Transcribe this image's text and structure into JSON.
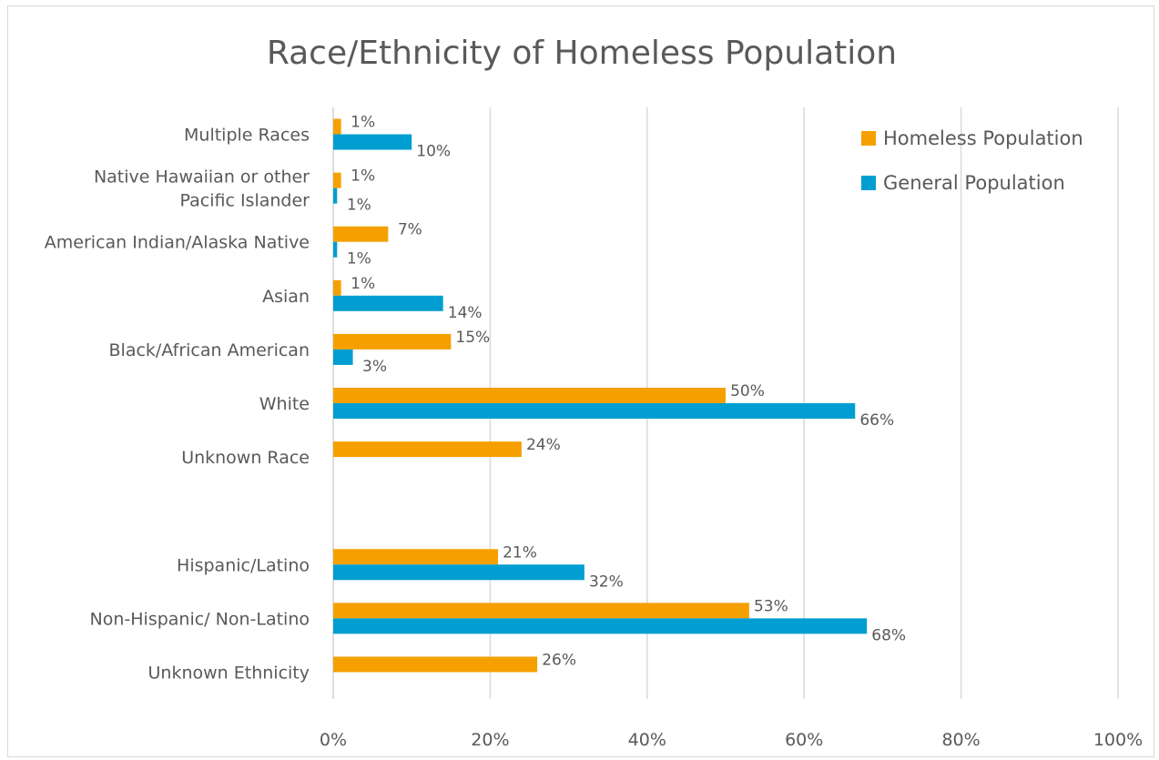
{
  "chart_data": {
    "type": "bar",
    "orientation": "horizontal",
    "title": "Race/Ethnicity of Homeless Population",
    "xlabel": "",
    "ylabel": "",
    "xlim": [
      0,
      100
    ],
    "x_ticks": [
      "0%",
      "20%",
      "40%",
      "60%",
      "80%",
      "100%"
    ],
    "grid": "vertical",
    "legend_position": "top-right",
    "categories": [
      [
        "Multiple Races"
      ],
      [
        "Native Hawaiian or other",
        "Pacific Islander"
      ],
      [
        "American Indian/Alaska Native"
      ],
      [
        "Asian"
      ],
      [
        "Black/African American"
      ],
      [
        "White"
      ],
      [
        "Unknown Race"
      ],
      [],
      [
        "Hispanic/Latino"
      ],
      [
        "Non-Hispanic/ Non-Latino"
      ],
      [
        "Unknown Ethnicity"
      ]
    ],
    "series": [
      {
        "name": "Homeless Population",
        "color": "#f5a000",
        "values": [
          1,
          1,
          7,
          1,
          15,
          50,
          24,
          null,
          21,
          53,
          26
        ],
        "labels": [
          "1%",
          "1%",
          "7%",
          "1%",
          "15%",
          "50%",
          "24%",
          null,
          "21%",
          "53%",
          "26%"
        ]
      },
      {
        "name": "General Population",
        "color": "#009ed1",
        "values": [
          10,
          0.5,
          0.5,
          14,
          2.5,
          66.5,
          null,
          null,
          32,
          68,
          null
        ],
        "labels": [
          "10%",
          "1%",
          "1%",
          "14%",
          "3%",
          "66%",
          null,
          null,
          "32%",
          "68%",
          null
        ]
      }
    ]
  }
}
